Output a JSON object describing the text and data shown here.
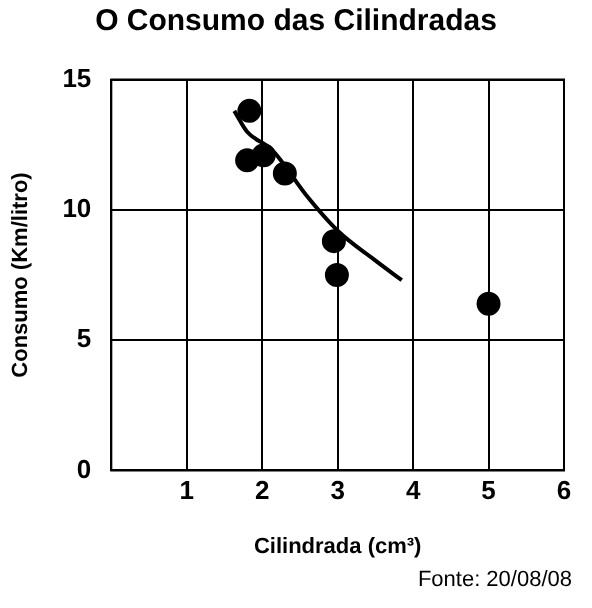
{
  "chart_data": {
    "type": "scatter",
    "title": "O Consumo das Cilindradas",
    "xlabel": "Cilindrada (cm³)",
    "ylabel": "Consumo (Km/litro)",
    "series": [
      {
        "type": "scatter",
        "color": "#000000",
        "marker": "circle",
        "x": [
          1.83,
          1.8,
          2.02,
          2.3,
          2.95,
          2.99,
          5
        ],
        "values": [
          13.8,
          11.9,
          12.1,
          11.4,
          8.8,
          7.5,
          6.4
        ]
      },
      {
        "type": "line",
        "color": "#000000",
        "marker": "none",
        "line_style": "solid",
        "x": [
          1.63,
          1.8,
          2.13,
          2.6,
          3,
          3.48,
          3.85
        ],
        "values": [
          13.8,
          13,
          12.3,
          10.5,
          9.2,
          8.1,
          7.3
        ]
      }
    ],
    "xlim": [
      0,
      6
    ],
    "xticks": [
      1,
      2,
      3,
      4,
      5,
      6
    ],
    "ylim": [
      0,
      15
    ],
    "yticks": [
      0,
      5,
      10,
      15
    ],
    "grid": true,
    "legend": false,
    "annotations": [
      "Fonte: 20/08/08"
    ]
  }
}
